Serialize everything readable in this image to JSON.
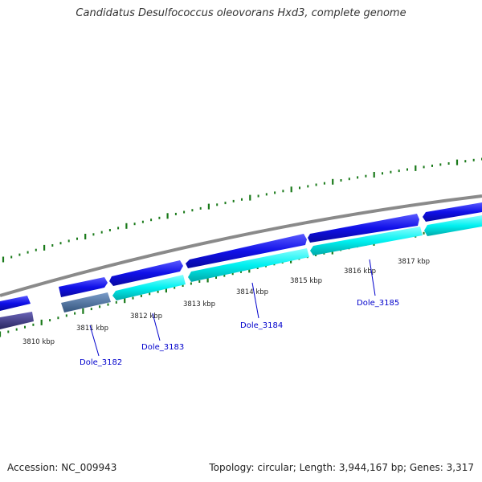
{
  "title": "Candidatus Desulfococcus oleovorans Hxd3, complete genome",
  "accession_label": "Accession: NC_009943",
  "topology_label": "Topology: circular; Length: 3,944,167 bp; Genes: 3,317",
  "colors": {
    "backbone": "#8a8a8a",
    "gene_forward": "#1212e6",
    "gene_reverse": "#00f0f0",
    "gene_muted": "#4a6f9e",
    "gene_dark": "#3e3a8a",
    "tick": "#1a7a1a",
    "gene_label": "#0000cc",
    "scale_label": "#222222"
  },
  "scale_labels": [
    "3810 kbp",
    "3811 kbp",
    "3812 kbp",
    "3813 kbp",
    "3814 kbp",
    "3815 kbp",
    "3816 kbp",
    "3817 kbp"
  ],
  "gene_labels": [
    "Dole_3182",
    "Dole_3183",
    "Dole_3184",
    "Dole_3185"
  ]
}
